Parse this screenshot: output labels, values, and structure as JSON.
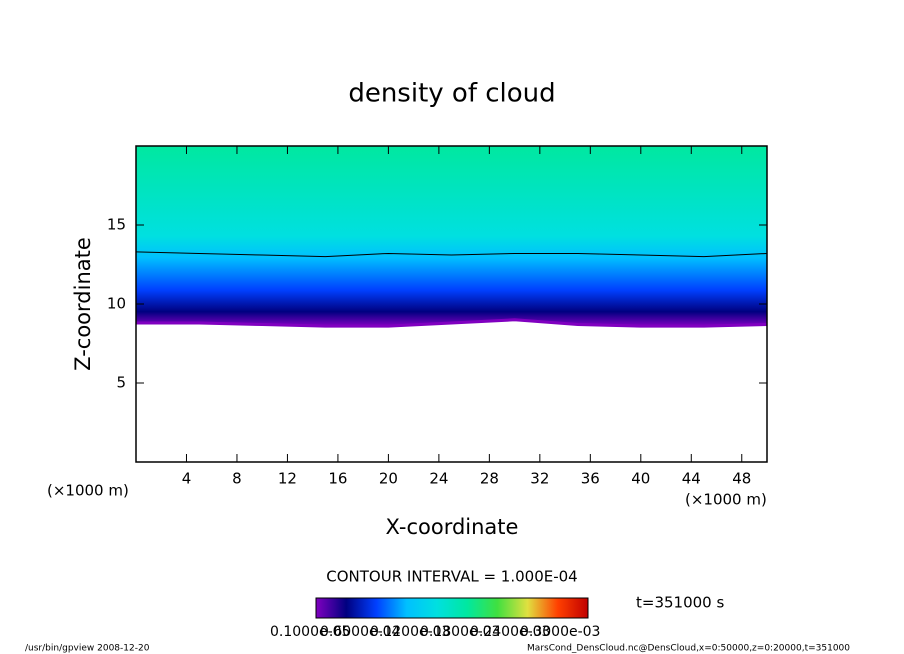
{
  "chart_data": {
    "type": "contour",
    "title": "density of cloud",
    "x_label": "X-coordinate",
    "y_label": "Z-coordinate",
    "x_unit_left": "(×1000 m)",
    "x_unit_right": "(×1000 m)",
    "xlim": [
      0,
      50
    ],
    "ylim": [
      0,
      20
    ],
    "xticks": [
      4,
      8,
      12,
      16,
      20,
      24,
      28,
      32,
      36,
      40,
      44,
      48
    ],
    "yticks": [
      5,
      10,
      15
    ],
    "x": [
      0,
      5,
      10,
      15,
      20,
      25,
      30,
      35,
      40,
      45,
      50
    ],
    "series": [
      {
        "name": "contour line",
        "color": "#000000",
        "values": [
          13.3,
          13.2,
          13.1,
          13.0,
          13.2,
          13.1,
          13.2,
          13.2,
          13.1,
          13.0,
          13.2
        ]
      },
      {
        "name": "cloud base",
        "color": "#8000c0",
        "values": [
          8.8,
          8.8,
          8.7,
          8.6,
          8.6,
          8.8,
          9.0,
          8.7,
          8.6,
          8.6,
          8.7
        ]
      }
    ],
    "colormap": [
      "#8000c0",
      "#000080",
      "#0040ff",
      "#00c0ff",
      "#00e0e0",
      "#00e8a0",
      "#40e040",
      "#e0e040",
      "#ff4000",
      "#c00000"
    ],
    "contour_interval": "CONTOUR INTERVAL = 1.000E-04",
    "time_label": "t=351000 s",
    "colorbar_labels": [
      "0.1000e-05",
      "0.6000e-04",
      "0.1200e-03",
      "0.1800e-03",
      "0.2400e-03",
      "0.3000e-03"
    ],
    "footer_left": "/usr/bin/gpview  2008-12-20",
    "footer_right": "MarsCond_DensCloud.nc@DensCloud,x=0:50000,z=0:20000,t=351000"
  }
}
